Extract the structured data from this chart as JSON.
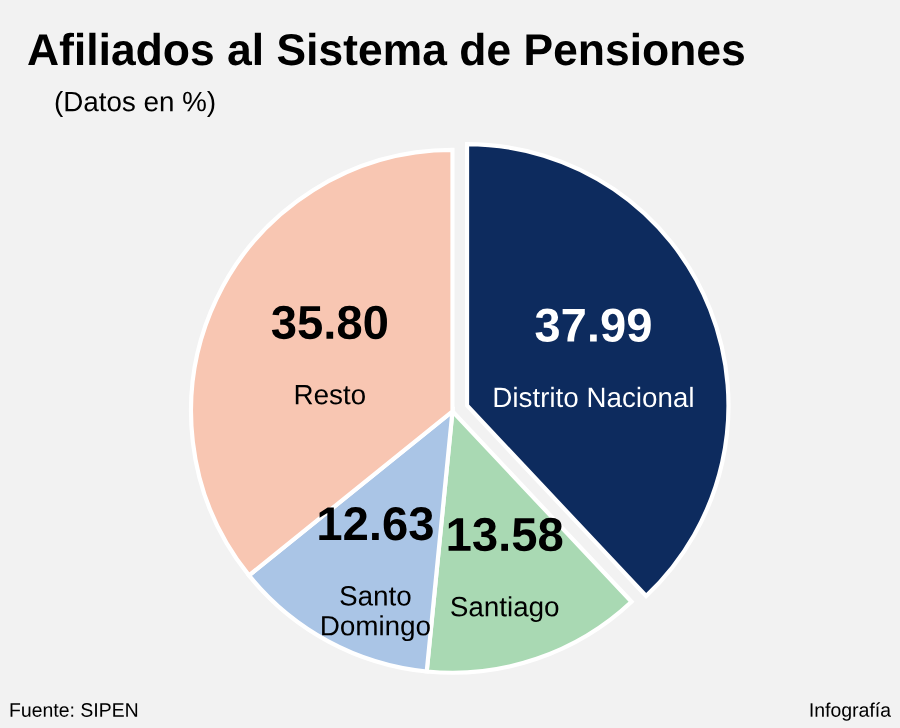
{
  "chart_data": {
    "type": "pie",
    "title": "Afiliados al Sistema de Pensiones",
    "subtitle": "(Datos en %)",
    "categories": [
      "Distrito Nacional",
      "Santiago",
      "Santo Domingo",
      "Resto"
    ],
    "values": [
      37.99,
      13.58,
      12.63,
      35.8
    ],
    "colors": [
      "#0d2b5e",
      "#a9d9b3",
      "#aac5e6",
      "#f8c6b2"
    ],
    "value_labels": [
      "37.99",
      "13.58",
      "12.63",
      "35.80"
    ],
    "annotations": [
      "Fuente: SIPEN",
      "Infografía"
    ]
  }
}
